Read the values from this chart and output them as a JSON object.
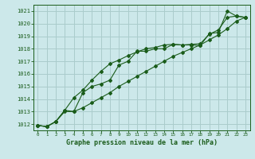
{
  "title": "Graphe pression niveau de la mer (hPa)",
  "bg_color": "#cce8ea",
  "grid_color": "#aacccc",
  "line_color": "#1a5c1a",
  "x_labels": [
    "0",
    "1",
    "2",
    "3",
    "4",
    "5",
    "6",
    "7",
    "8",
    "9",
    "10",
    "11",
    "12",
    "13",
    "14",
    "15",
    "16",
    "17",
    "18",
    "19",
    "20",
    "21",
    "22",
    "23"
  ],
  "ylim": [
    1011.5,
    1021.5
  ],
  "yticks": [
    1012,
    1013,
    1014,
    1015,
    1016,
    1017,
    1018,
    1019,
    1020,
    1021
  ],
  "series1": [
    1011.9,
    1011.8,
    1012.2,
    1013.1,
    1013.0,
    1014.5,
    1015.0,
    1015.2,
    1015.5,
    1016.7,
    1017.0,
    1017.8,
    1017.8,
    1018.0,
    1018.0,
    1018.35,
    1018.3,
    1018.3,
    1018.25,
    1019.2,
    1019.3,
    1021.0,
    1020.6,
    1020.5
  ],
  "series2": [
    1011.9,
    1011.8,
    1012.2,
    1013.1,
    1014.1,
    1014.7,
    1015.5,
    1016.2,
    1016.8,
    1017.1,
    1017.45,
    1017.75,
    1018.0,
    1018.1,
    1018.3,
    1018.35,
    1018.3,
    1018.35,
    1018.4,
    1019.15,
    1019.5,
    1020.5,
    1020.6,
    1020.5
  ],
  "series3": [
    1011.9,
    1011.8,
    1012.2,
    1013.0,
    1013.0,
    1013.3,
    1013.7,
    1014.1,
    1014.5,
    1015.0,
    1015.4,
    1015.8,
    1016.2,
    1016.6,
    1017.0,
    1017.4,
    1017.7,
    1018.0,
    1018.3,
    1018.7,
    1019.1,
    1019.6,
    1020.2,
    1020.5
  ]
}
